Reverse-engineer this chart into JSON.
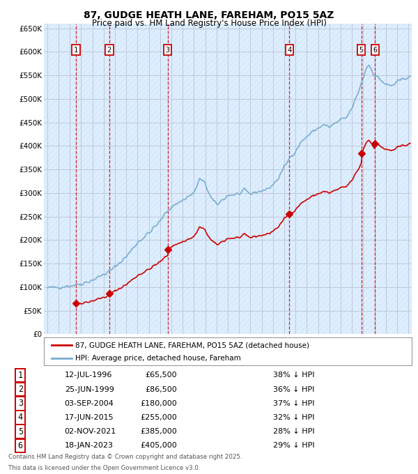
{
  "title": "87, GUDGE HEATH LANE, FAREHAM, PO15 5AZ",
  "subtitle": "Price paid vs. HM Land Registry's House Price Index (HPI)",
  "legend_house": "87, GUDGE HEATH LANE, FAREHAM, PO15 5AZ (detached house)",
  "legend_hpi": "HPI: Average price, detached house, Fareham",
  "footnote1": "Contains HM Land Registry data © Crown copyright and database right 2025.",
  "footnote2": "This data is licensed under the Open Government Licence v3.0.",
  "transactions": [
    {
      "num": 1,
      "date": "12-JUL-1996",
      "year": 1996.54,
      "price": 65500,
      "pct": "38% ↓ HPI"
    },
    {
      "num": 2,
      "date": "25-JUN-1999",
      "year": 1999.49,
      "price": 86500,
      "pct": "36% ↓ HPI"
    },
    {
      "num": 3,
      "date": "03-SEP-2004",
      "year": 2004.67,
      "price": 180000,
      "pct": "37% ↓ HPI"
    },
    {
      "num": 4,
      "date": "17-JUN-2015",
      "year": 2015.46,
      "price": 255000,
      "pct": "32% ↓ HPI"
    },
    {
      "num": 5,
      "date": "02-NOV-2021",
      "year": 2021.84,
      "price": 385000,
      "pct": "28% ↓ HPI"
    },
    {
      "num": 6,
      "date": "18-JAN-2023",
      "year": 2023.05,
      "price": 405000,
      "pct": "29% ↓ HPI"
    }
  ],
  "house_color": "#cc0000",
  "hpi_color": "#7aadcf",
  "background_chart": "#ddeeff",
  "grid_color": "#c0c8d8",
  "ylim": [
    0,
    660000
  ],
  "xlim_start": 1993.7,
  "xlim_end": 2026.3,
  "yticks": [
    0,
    50000,
    100000,
    150000,
    200000,
    250000,
    300000,
    350000,
    400000,
    450000,
    500000,
    550000,
    600000,
    650000
  ],
  "ytick_labels": [
    "£0",
    "£50K",
    "£100K",
    "£150K",
    "£200K",
    "£250K",
    "£300K",
    "£350K",
    "£400K",
    "£450K",
    "£500K",
    "£550K",
    "£600K",
    "£650K"
  ]
}
